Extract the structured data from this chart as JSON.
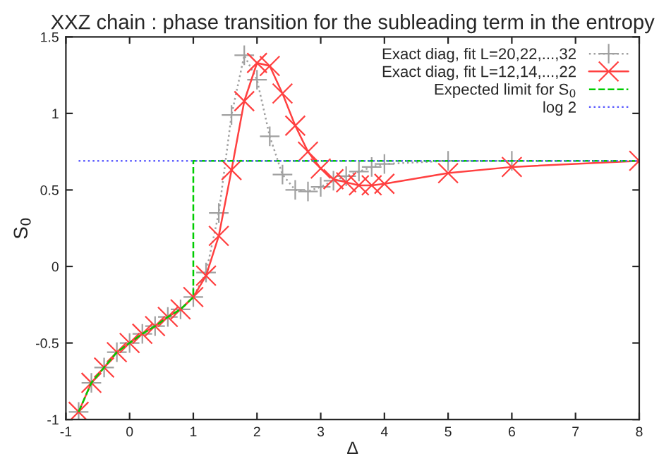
{
  "chart_data": {
    "type": "line",
    "title": "XXZ chain : phase transition for the subleading term in the entropy",
    "xlabel": "Δ",
    "ylabel": "S$_{0}$",
    "xlim": [
      -1,
      8
    ],
    "ylim": [
      -1,
      1.5
    ],
    "xticks": [
      -1,
      0,
      1,
      2,
      3,
      4,
      5,
      6,
      7,
      8
    ],
    "yticks": [
      -1,
      -0.5,
      0,
      0.5,
      1,
      1.5
    ],
    "grid": false,
    "legend": "top right",
    "series": [
      {
        "name": "Exact diag, fit L=20,22,...,32",
        "color": "#a0a0a0",
        "marker": "plus",
        "line_style": "dotted",
        "x": [
          -0.8,
          -0.6,
          -0.4,
          -0.2,
          0,
          0.2,
          0.4,
          0.6,
          0.8,
          1.0,
          1.2,
          1.4,
          1.6,
          1.8,
          2.0,
          2.2,
          2.4,
          2.6,
          2.8,
          3.0,
          3.2,
          3.4,
          3.6,
          3.8,
          4.0,
          5,
          6
        ],
        "values": [
          -0.95,
          -0.76,
          -0.66,
          -0.56,
          -0.5,
          -0.44,
          -0.39,
          -0.33,
          -0.28,
          -0.2,
          -0.04,
          0.35,
          0.99,
          1.38,
          1.22,
          0.85,
          0.6,
          0.5,
          0.49,
          0.52,
          0.56,
          0.59,
          0.62,
          0.65,
          0.67,
          0.69,
          0.69
        ]
      },
      {
        "name": "Exact diag, fit L=12,14,...,22",
        "color": "#ff4040",
        "marker": "cross",
        "line_style": "solid",
        "x": [
          -0.8,
          -0.6,
          -0.4,
          -0.2,
          0,
          0.2,
          0.4,
          0.6,
          0.8,
          1.0,
          1.2,
          1.4,
          1.6,
          1.8,
          2.0,
          2.2,
          2.4,
          2.6,
          2.8,
          3.0,
          3.2,
          3.4,
          3.6,
          3.8,
          4.0,
          5,
          6,
          8
        ],
        "values": [
          -0.95,
          -0.76,
          -0.66,
          -0.56,
          -0.5,
          -0.44,
          -0.39,
          -0.33,
          -0.28,
          -0.2,
          -0.06,
          0.2,
          0.63,
          1.08,
          1.33,
          1.31,
          1.13,
          0.92,
          0.75,
          0.64,
          0.57,
          0.55,
          0.53,
          0.53,
          0.54,
          0.61,
          0.65,
          0.69
        ]
      },
      {
        "name": "Expected limit for S$_{0}$",
        "color": "#00cc00",
        "marker": "none",
        "line_style": "dashed",
        "x": [
          -0.8,
          -0.6,
          -0.4,
          -0.2,
          0,
          0.2,
          0.4,
          0.6,
          0.8,
          1.0,
          1.0,
          8
        ],
        "values": [
          -0.95,
          -0.76,
          -0.66,
          -0.56,
          -0.5,
          -0.44,
          -0.39,
          -0.33,
          -0.28,
          -0.2,
          0.69,
          0.69
        ]
      },
      {
        "name": "log 2",
        "color": "#6060ff",
        "marker": "none",
        "line_style": "dotted",
        "x": [
          -0.8,
          8
        ],
        "values": [
          0.69,
          0.69
        ]
      }
    ]
  }
}
